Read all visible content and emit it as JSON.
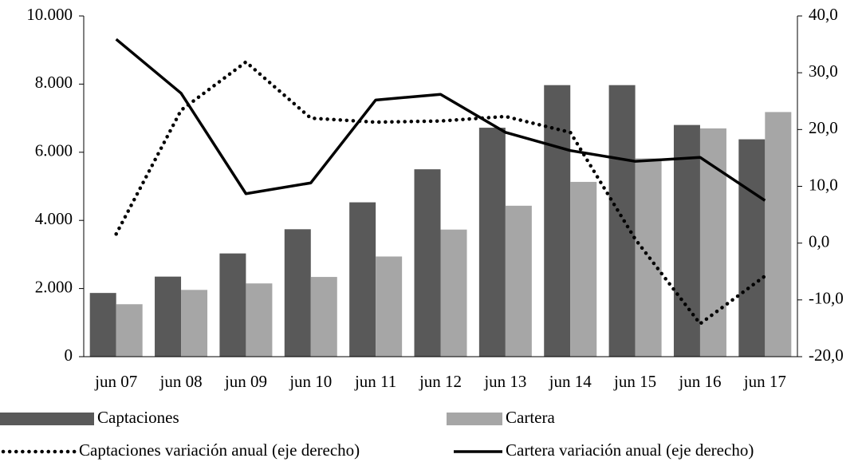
{
  "chart_data": {
    "type": "bar",
    "categories": [
      "jun 07",
      "jun 08",
      "jun 09",
      "jun 10",
      "jun 11",
      "jun 12",
      "jun 13",
      "jun 14",
      "jun 15",
      "jun 16",
      "jun 17"
    ],
    "series": [
      {
        "name": "Captaciones",
        "type": "bar",
        "color": "#595959",
        "values": [
          1870,
          2350,
          3030,
          3740,
          4530,
          5500,
          6720,
          7970,
          7970,
          6800,
          6380
        ]
      },
      {
        "name": "Cartera",
        "type": "bar",
        "color": "#a6a6a6",
        "values": [
          1540,
          1960,
          2150,
          2340,
          2940,
          3730,
          4430,
          5130,
          5820,
          6700,
          7180
        ]
      },
      {
        "name": "Captaciones variación anual (eje derecho)",
        "type": "line",
        "dash": "dotted",
        "axis": "y2",
        "color": "#000000",
        "values": [
          1.6,
          23.4,
          31.9,
          22.0,
          21.3,
          21.5,
          22.3,
          19.5,
          0.7,
          -14.2,
          -5.8
        ]
      },
      {
        "name": "Cartera variación anual (eje derecho)",
        "type": "line",
        "dash": "solid",
        "axis": "y2",
        "color": "#000000",
        "values": [
          35.9,
          26.4,
          8.7,
          10.6,
          25.2,
          26.2,
          19.5,
          16.3,
          14.4,
          15.1,
          7.5
        ]
      }
    ],
    "ylim": [
      0,
      10000
    ],
    "yticks": [
      0,
      {
        "value": 2000,
        "label": "2.000"
      },
      {
        "value": 4000,
        "label": "4.000"
      },
      {
        "value": 6000,
        "label": "6.000"
      },
      {
        "value": 8000,
        "label": "8.000"
      },
      {
        "value": 10000,
        "label": "10.000"
      }
    ],
    "y2lim": [
      -20,
      40
    ],
    "y2ticks": [
      {
        "value": -20,
        "label": "-20,0"
      },
      {
        "value": -10,
        "label": "-10,0"
      },
      {
        "value": 0,
        "label": "0,0"
      },
      {
        "value": 10,
        "label": "10,0"
      },
      {
        "value": 20,
        "label": "20,0"
      },
      {
        "value": 30,
        "label": "30,0"
      },
      {
        "value": 40,
        "label": "40,0"
      }
    ],
    "grid": false
  }
}
